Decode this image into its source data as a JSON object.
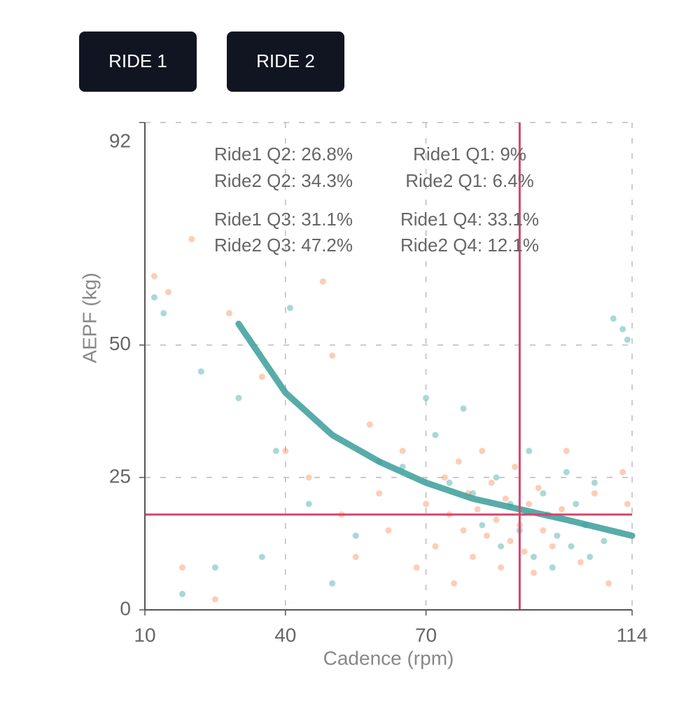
{
  "buttons": [
    "RIDE 1",
    "RIDE 2"
  ],
  "chart_data": {
    "type": "scatter",
    "x_label": "Cadence (rpm)",
    "y_label": "AEPF (kg)",
    "xlim": [
      10,
      114
    ],
    "ylim": [
      0,
      92
    ],
    "xticks": [
      10,
      40,
      70,
      114
    ],
    "yticks": [
      0,
      25,
      50,
      92
    ],
    "grid": true,
    "annotations": [
      "Ride1 Q2: 26.8%",
      "Ride2 Q2: 34.3%",
      "Ride1 Q1: 9%",
      "Ride2 Q1: 6.4%",
      "Ride1 Q3: 31.1%",
      "Ride2 Q3: 47.2%",
      "Ride1 Q4: 33.1%",
      "Ride2 Q4: 12.1%"
    ],
    "series": [
      {
        "color": "#2a9d9a",
        "x": [
          12,
          14,
          22,
          30,
          41,
          38,
          45,
          60,
          65,
          72,
          75,
          78,
          80,
          82,
          85,
          86,
          88,
          90,
          92,
          93,
          95,
          96,
          97,
          98,
          100,
          101,
          102,
          104,
          105,
          106,
          108,
          110,
          112,
          113,
          35,
          25,
          18,
          50,
          55,
          70
        ],
        "values": [
          59,
          56,
          45,
          40,
          57,
          30,
          20,
          28,
          27,
          33,
          24,
          38,
          22,
          16,
          25,
          12,
          20,
          15,
          30,
          10,
          22,
          18,
          8,
          14,
          26,
          12,
          20,
          16,
          10,
          24,
          13,
          55,
          53,
          51,
          10,
          8,
          3,
          5,
          14,
          40
        ]
      },
      {
        "color": "#f4844c",
        "x": [
          12,
          15,
          20,
          28,
          35,
          40,
          45,
          48,
          50,
          52,
          55,
          58,
          60,
          62,
          65,
          68,
          70,
          72,
          74,
          75,
          76,
          77,
          78,
          79,
          80,
          81,
          82,
          83,
          84,
          85,
          86,
          87,
          88,
          89,
          90,
          91,
          92,
          93,
          94,
          95,
          97,
          99,
          100,
          103,
          106,
          109,
          112,
          113,
          18,
          25
        ],
        "values": [
          63,
          60,
          70,
          56,
          44,
          30,
          25,
          62,
          48,
          18,
          10,
          35,
          22,
          15,
          30,
          8,
          20,
          12,
          25,
          18,
          5,
          28,
          15,
          22,
          10,
          19,
          30,
          14,
          24,
          17,
          8,
          21,
          13,
          27,
          16,
          11,
          20,
          7,
          23,
          15,
          12,
          19,
          30,
          9,
          22,
          5,
          26,
          20,
          8,
          2
        ]
      }
    ],
    "fit": {
      "color": "#3a9e9b",
      "x": [
        30,
        40,
        50,
        60,
        70,
        80,
        90,
        100,
        114
      ],
      "values": [
        54,
        41,
        33,
        28,
        24,
        21,
        19,
        17,
        14
      ]
    },
    "reference_lines": {
      "x": 90,
      "y": 18,
      "color": "#d6456a"
    }
  }
}
